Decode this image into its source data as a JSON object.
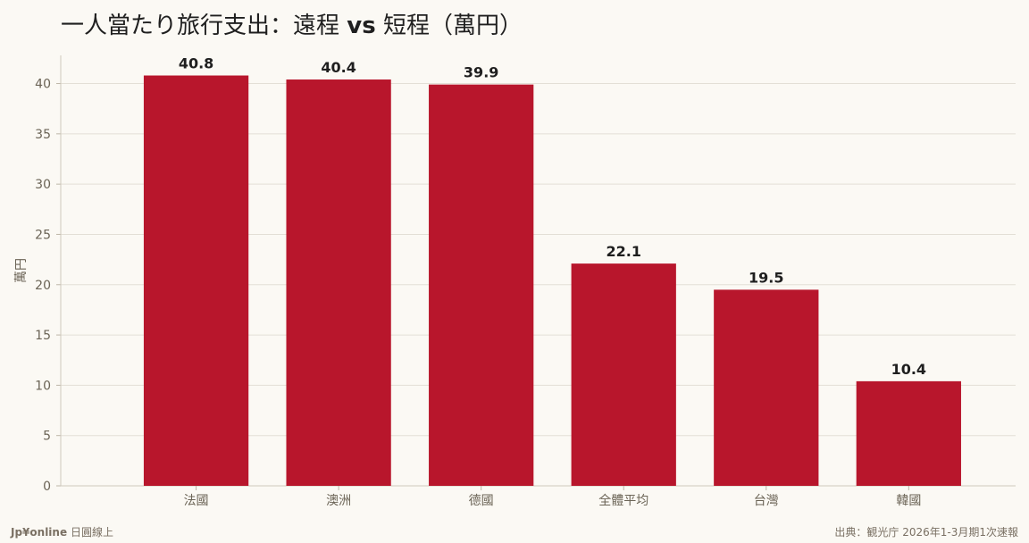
{
  "title": {
    "part1": "一人當たり旅行支出：遠程",
    "vs": "vs",
    "part2": "短程（萬円）"
  },
  "footer": {
    "brand_name": "Jp¥online",
    "brand_sub": "日圓線上",
    "source": "出典：観光庁 2026年1-3月期1次速報"
  },
  "colors": {
    "bar": "#b8162c",
    "background": "#fbf9f4",
    "grid": "#e3dfd6",
    "axis_text": "#6b6456",
    "value_label": "#1f1f1f"
  },
  "chart_data": {
    "type": "bar",
    "categories": [
      "法國",
      "澳洲",
      "德國",
      "全體平均",
      "台灣",
      "韓國"
    ],
    "values": [
      40.8,
      40.4,
      39.9,
      22.1,
      19.5,
      10.4
    ],
    "ylabel": "萬円",
    "ylim": [
      0,
      42.8
    ],
    "yticks": [
      0,
      5,
      10,
      15,
      20,
      25,
      30,
      35,
      40
    ],
    "grid": true
  }
}
